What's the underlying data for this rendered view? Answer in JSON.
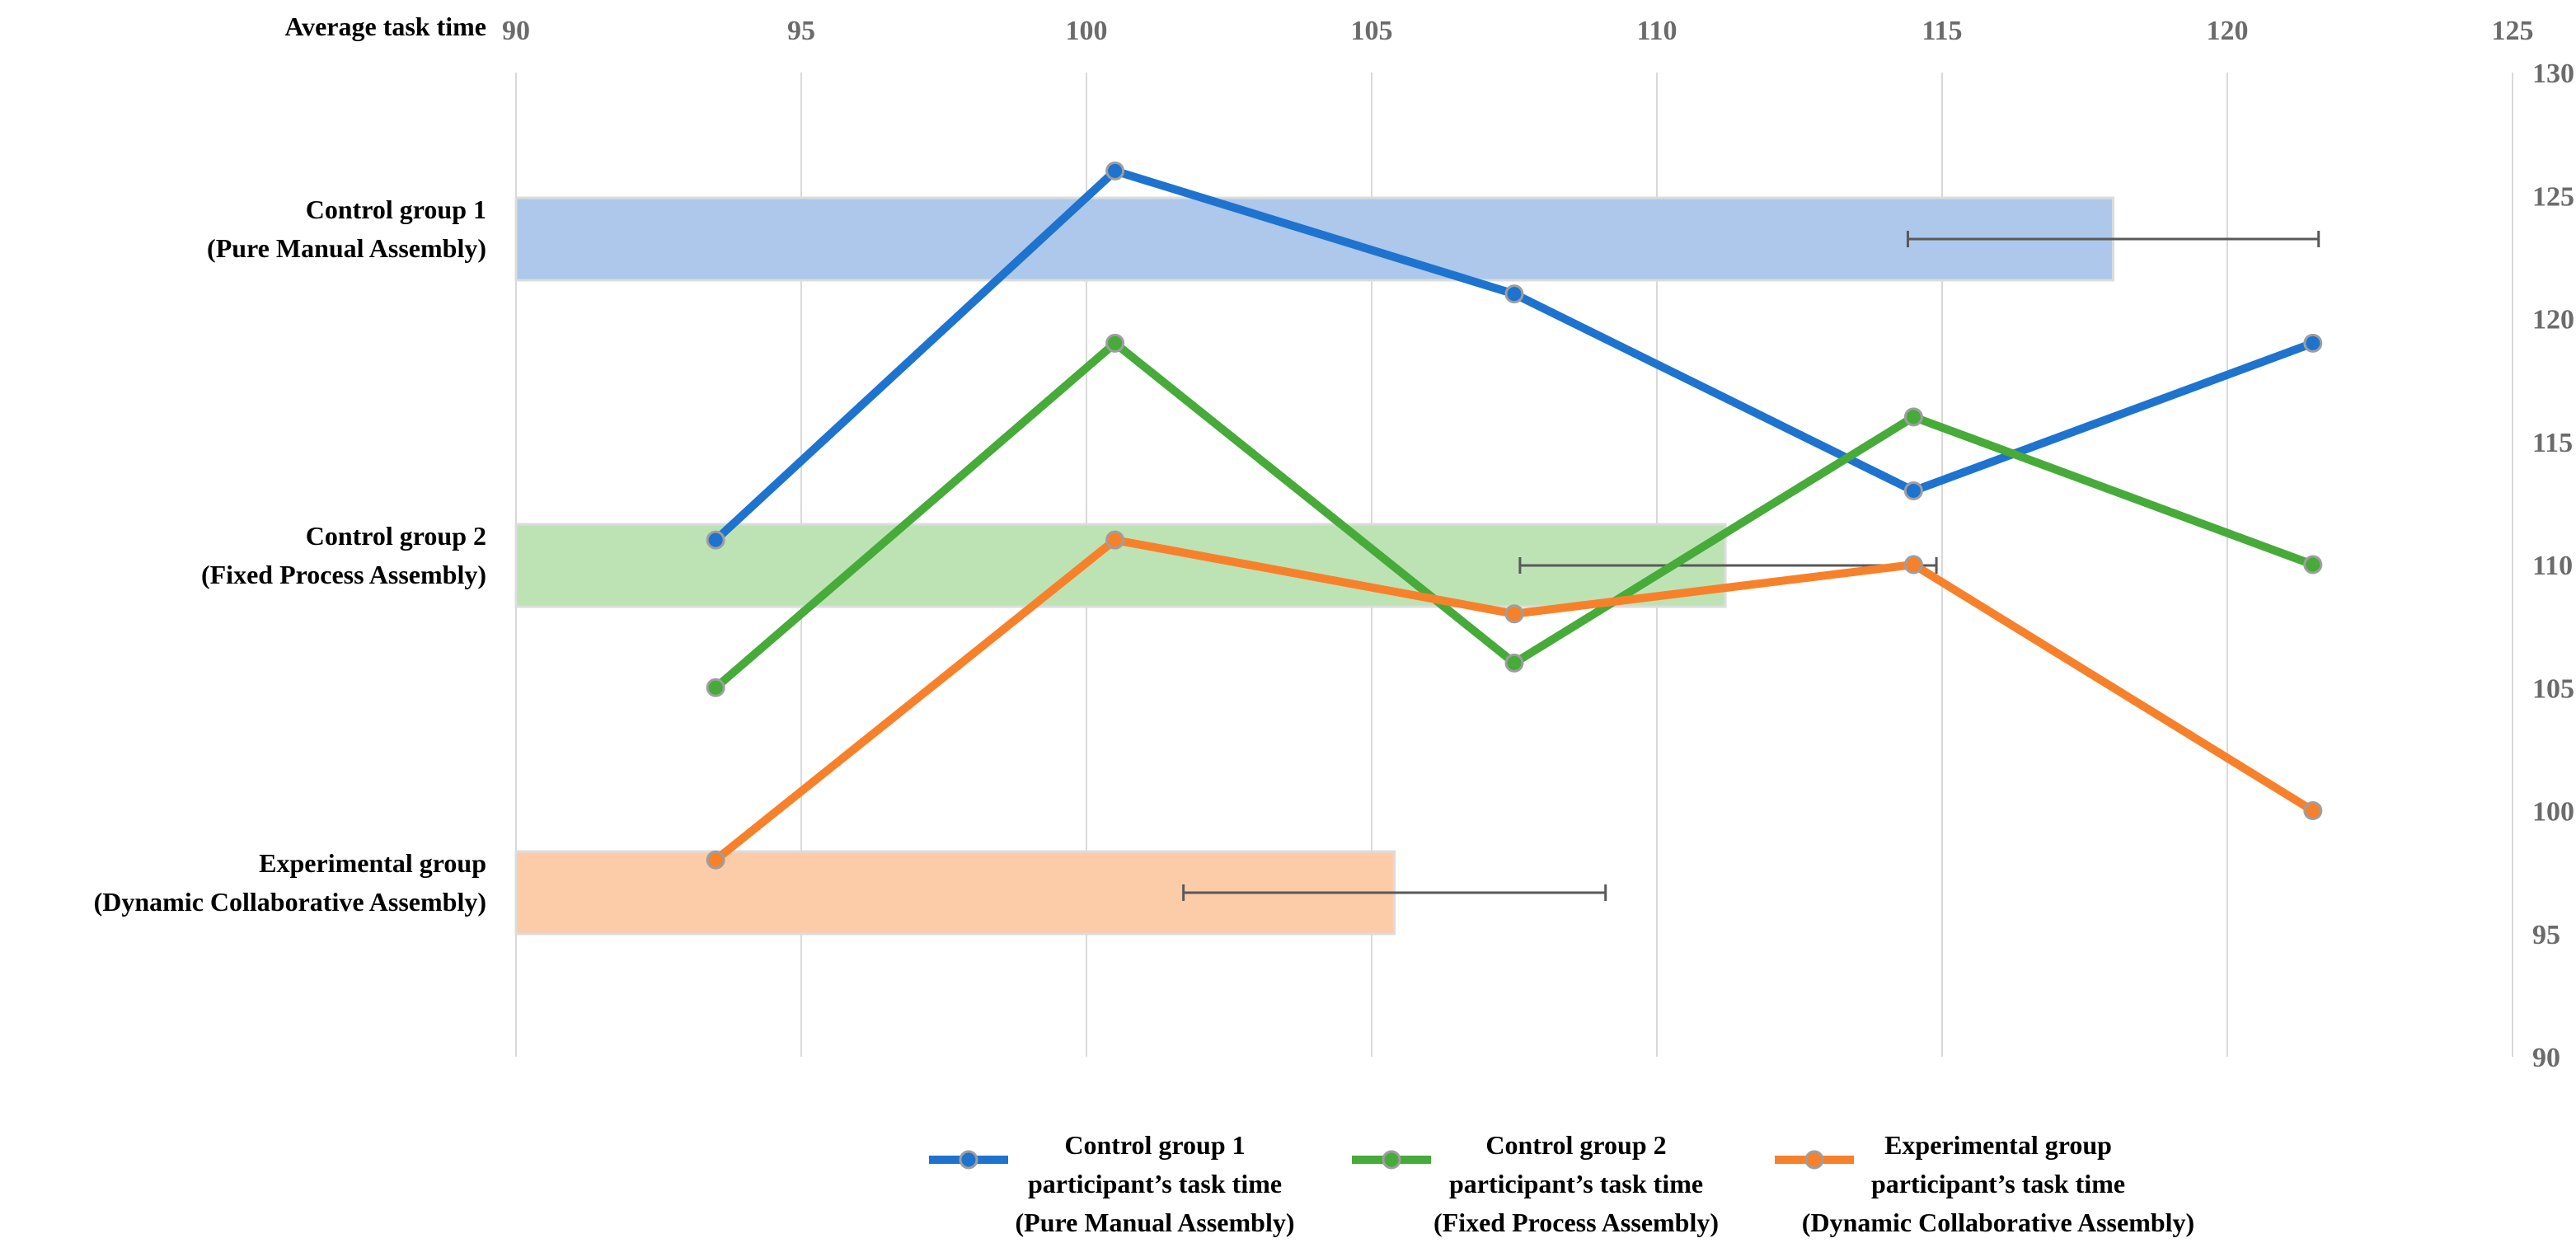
{
  "chart_data": {
    "type": "bar+line",
    "bar_axis": {
      "title": "Average task time",
      "range": [
        90,
        125
      ],
      "ticks": [
        90,
        95,
        100,
        105,
        110,
        115,
        120,
        125
      ],
      "position": "top"
    },
    "line_axis": {
      "range": [
        90,
        130
      ],
      "ticks": [
        90,
        95,
        100,
        105,
        110,
        115,
        120,
        125,
        130
      ],
      "position": "right"
    },
    "bars": [
      {
        "label_line1": "Control group 1",
        "label_line2": "(Pure Manual Assembly)",
        "value": 118,
        "error_low": 114.4,
        "error_high": 121.6,
        "color": "#adc8ea"
      },
      {
        "label_line1": "Control group 2",
        "label_line2": "(Fixed Process Assembly)",
        "value": 111.2,
        "error_low": 107.6,
        "error_high": 114.9,
        "color": "#bde3b5"
      },
      {
        "label_line1": "Experimental group",
        "label_line2": "(Dynamic Collaborative Assembly)",
        "value": 105.4,
        "error_low": 101.7,
        "error_high": 109.1,
        "color": "#fccca9"
      }
    ],
    "series": [
      {
        "name_line1": "Control group 1",
        "name_line2": "participant’s task time",
        "name_line3": "(Pure Manual Assembly)",
        "color": "#1e73cf",
        "values": [
          111,
          126,
          121,
          113,
          119
        ]
      },
      {
        "name_line1": "Control group 2",
        "name_line2": "participant’s task time",
        "name_line3": "(Fixed Process Assembly)",
        "color": "#46ab39",
        "values": [
          105,
          119,
          106,
          116,
          110
        ]
      },
      {
        "name_line1": "Experimental group",
        "name_line2": "participant’s task time",
        "name_line3": "(Dynamic Collaborative Assembly)",
        "color": "#f7812b",
        "values": [
          98,
          111,
          108,
          110,
          100
        ]
      }
    ],
    "line_x_positions_bar_units": [
      93.5,
      100.5,
      107.5,
      114.5,
      121.5
    ],
    "legend_position": "bottom",
    "grid": true
  }
}
